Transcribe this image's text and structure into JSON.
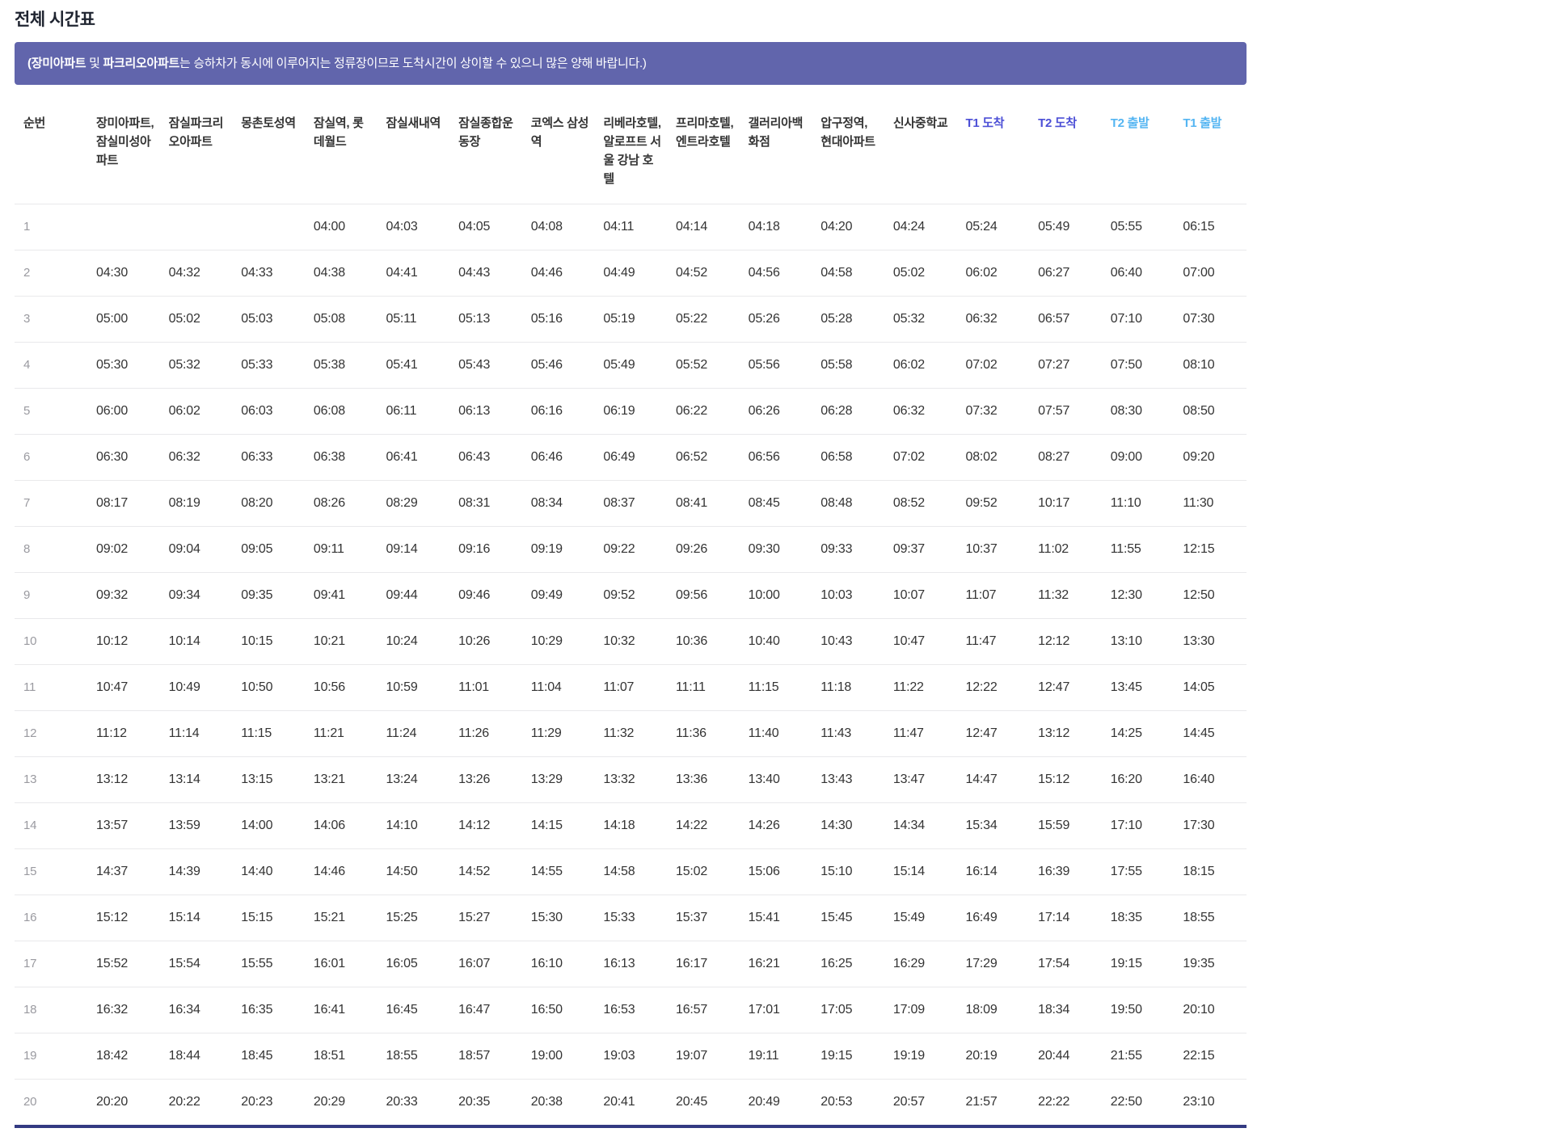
{
  "title": "전체 시간표",
  "notice": {
    "part1": "(장미아파트",
    "part2": " 및 ",
    "part3": "파크리오아파트",
    "part4": "는 승하차가 동시에 이루어지는 정류장이므로 도착시간이 상이할 수 있으니 많은 양해 바랍니다.)"
  },
  "colors": {
    "notice_background": "#6165ac",
    "notice_text": "#ffffff",
    "arrival_header": "#4c4fd6",
    "departure_header": "#54b5f2",
    "body_text": "#333333",
    "row_number": "#9a9aa0",
    "row_divider": "#e9e9eb",
    "table_bottom_border": "#333a82"
  },
  "table": {
    "columns": [
      {
        "key": "seq",
        "label": "순번",
        "type": "index"
      },
      {
        "key": "jangmi-misung-apt",
        "label": "장미아파트, 잠실미성아파트",
        "type": "stop"
      },
      {
        "key": "jamsil-parkrio-apt",
        "label": "잠실파크리오아파트",
        "type": "stop"
      },
      {
        "key": "mongchontoseong-station",
        "label": "몽촌토성역",
        "type": "stop"
      },
      {
        "key": "jamsil-station-lotte-world",
        "label": "잠실역, 롯데월드",
        "type": "stop"
      },
      {
        "key": "jamsilsaenae-station",
        "label": "잠실새내역",
        "type": "stop"
      },
      {
        "key": "jamsil-sports-complex",
        "label": "잠실종합운동장",
        "type": "stop"
      },
      {
        "key": "coex-samseong-station",
        "label": "코엑스 삼성역",
        "type": "stop"
      },
      {
        "key": "riviera-aloft-seoul-gangnam-hotel",
        "label": "리베라호텔, 알로프트 서울 강남 호텔",
        "type": "stop"
      },
      {
        "key": "prima-entra-hotel",
        "label": "프리마호텔, 엔트라호텔",
        "type": "stop"
      },
      {
        "key": "galleria-dept-store",
        "label": "갤러리아백화점",
        "type": "stop"
      },
      {
        "key": "apgujeong-station-hyundai-apt",
        "label": "압구정역, 현대아파트",
        "type": "stop"
      },
      {
        "key": "sinsa-middle-school",
        "label": "신사중학교",
        "type": "stop"
      },
      {
        "key": "t1-arrival",
        "label": "T1 도착",
        "type": "arrive"
      },
      {
        "key": "t2-arrival",
        "label": "T2 도착",
        "type": "arrive"
      },
      {
        "key": "t2-departure",
        "label": "T2 출발",
        "type": "depart"
      },
      {
        "key": "t1-departure",
        "label": "T1 출발",
        "type": "depart"
      }
    ],
    "rows": [
      {
        "no": "1",
        "times": [
          "",
          "",
          "",
          "04:00",
          "04:03",
          "04:05",
          "04:08",
          "04:11",
          "04:14",
          "04:18",
          "04:20",
          "04:24",
          "05:24",
          "05:49",
          "05:55",
          "06:15"
        ]
      },
      {
        "no": "2",
        "times": [
          "04:30",
          "04:32",
          "04:33",
          "04:38",
          "04:41",
          "04:43",
          "04:46",
          "04:49",
          "04:52",
          "04:56",
          "04:58",
          "05:02",
          "06:02",
          "06:27",
          "06:40",
          "07:00"
        ]
      },
      {
        "no": "3",
        "times": [
          "05:00",
          "05:02",
          "05:03",
          "05:08",
          "05:11",
          "05:13",
          "05:16",
          "05:19",
          "05:22",
          "05:26",
          "05:28",
          "05:32",
          "06:32",
          "06:57",
          "07:10",
          "07:30"
        ]
      },
      {
        "no": "4",
        "times": [
          "05:30",
          "05:32",
          "05:33",
          "05:38",
          "05:41",
          "05:43",
          "05:46",
          "05:49",
          "05:52",
          "05:56",
          "05:58",
          "06:02",
          "07:02",
          "07:27",
          "07:50",
          "08:10"
        ]
      },
      {
        "no": "5",
        "times": [
          "06:00",
          "06:02",
          "06:03",
          "06:08",
          "06:11",
          "06:13",
          "06:16",
          "06:19",
          "06:22",
          "06:26",
          "06:28",
          "06:32",
          "07:32",
          "07:57",
          "08:30",
          "08:50"
        ]
      },
      {
        "no": "6",
        "times": [
          "06:30",
          "06:32",
          "06:33",
          "06:38",
          "06:41",
          "06:43",
          "06:46",
          "06:49",
          "06:52",
          "06:56",
          "06:58",
          "07:02",
          "08:02",
          "08:27",
          "09:00",
          "09:20"
        ]
      },
      {
        "no": "7",
        "times": [
          "08:17",
          "08:19",
          "08:20",
          "08:26",
          "08:29",
          "08:31",
          "08:34",
          "08:37",
          "08:41",
          "08:45",
          "08:48",
          "08:52",
          "09:52",
          "10:17",
          "11:10",
          "11:30"
        ]
      },
      {
        "no": "8",
        "times": [
          "09:02",
          "09:04",
          "09:05",
          "09:11",
          "09:14",
          "09:16",
          "09:19",
          "09:22",
          "09:26",
          "09:30",
          "09:33",
          "09:37",
          "10:37",
          "11:02",
          "11:55",
          "12:15"
        ]
      },
      {
        "no": "9",
        "times": [
          "09:32",
          "09:34",
          "09:35",
          "09:41",
          "09:44",
          "09:46",
          "09:49",
          "09:52",
          "09:56",
          "10:00",
          "10:03",
          "10:07",
          "11:07",
          "11:32",
          "12:30",
          "12:50"
        ]
      },
      {
        "no": "10",
        "times": [
          "10:12",
          "10:14",
          "10:15",
          "10:21",
          "10:24",
          "10:26",
          "10:29",
          "10:32",
          "10:36",
          "10:40",
          "10:43",
          "10:47",
          "11:47",
          "12:12",
          "13:10",
          "13:30"
        ]
      },
      {
        "no": "11",
        "times": [
          "10:47",
          "10:49",
          "10:50",
          "10:56",
          "10:59",
          "11:01",
          "11:04",
          "11:07",
          "11:11",
          "11:15",
          "11:18",
          "11:22",
          "12:22",
          "12:47",
          "13:45",
          "14:05"
        ]
      },
      {
        "no": "12",
        "times": [
          "11:12",
          "11:14",
          "11:15",
          "11:21",
          "11:24",
          "11:26",
          "11:29",
          "11:32",
          "11:36",
          "11:40",
          "11:43",
          "11:47",
          "12:47",
          "13:12",
          "14:25",
          "14:45"
        ]
      },
      {
        "no": "13",
        "times": [
          "13:12",
          "13:14",
          "13:15",
          "13:21",
          "13:24",
          "13:26",
          "13:29",
          "13:32",
          "13:36",
          "13:40",
          "13:43",
          "13:47",
          "14:47",
          "15:12",
          "16:20",
          "16:40"
        ]
      },
      {
        "no": "14",
        "times": [
          "13:57",
          "13:59",
          "14:00",
          "14:06",
          "14:10",
          "14:12",
          "14:15",
          "14:18",
          "14:22",
          "14:26",
          "14:30",
          "14:34",
          "15:34",
          "15:59",
          "17:10",
          "17:30"
        ]
      },
      {
        "no": "15",
        "times": [
          "14:37",
          "14:39",
          "14:40",
          "14:46",
          "14:50",
          "14:52",
          "14:55",
          "14:58",
          "15:02",
          "15:06",
          "15:10",
          "15:14",
          "16:14",
          "16:39",
          "17:55",
          "18:15"
        ]
      },
      {
        "no": "16",
        "times": [
          "15:12",
          "15:14",
          "15:15",
          "15:21",
          "15:25",
          "15:27",
          "15:30",
          "15:33",
          "15:37",
          "15:41",
          "15:45",
          "15:49",
          "16:49",
          "17:14",
          "18:35",
          "18:55"
        ]
      },
      {
        "no": "17",
        "times": [
          "15:52",
          "15:54",
          "15:55",
          "16:01",
          "16:05",
          "16:07",
          "16:10",
          "16:13",
          "16:17",
          "16:21",
          "16:25",
          "16:29",
          "17:29",
          "17:54",
          "19:15",
          "19:35"
        ]
      },
      {
        "no": "18",
        "times": [
          "16:32",
          "16:34",
          "16:35",
          "16:41",
          "16:45",
          "16:47",
          "16:50",
          "16:53",
          "16:57",
          "17:01",
          "17:05",
          "17:09",
          "18:09",
          "18:34",
          "19:50",
          "20:10"
        ]
      },
      {
        "no": "19",
        "times": [
          "18:42",
          "18:44",
          "18:45",
          "18:51",
          "18:55",
          "18:57",
          "19:00",
          "19:03",
          "19:07",
          "19:11",
          "19:15",
          "19:19",
          "20:19",
          "20:44",
          "21:55",
          "22:15"
        ]
      },
      {
        "no": "20",
        "times": [
          "20:20",
          "20:22",
          "20:23",
          "20:29",
          "20:33",
          "20:35",
          "20:38",
          "20:41",
          "20:45",
          "20:49",
          "20:53",
          "20:57",
          "21:57",
          "22:22",
          "22:50",
          "23:10"
        ]
      }
    ]
  }
}
